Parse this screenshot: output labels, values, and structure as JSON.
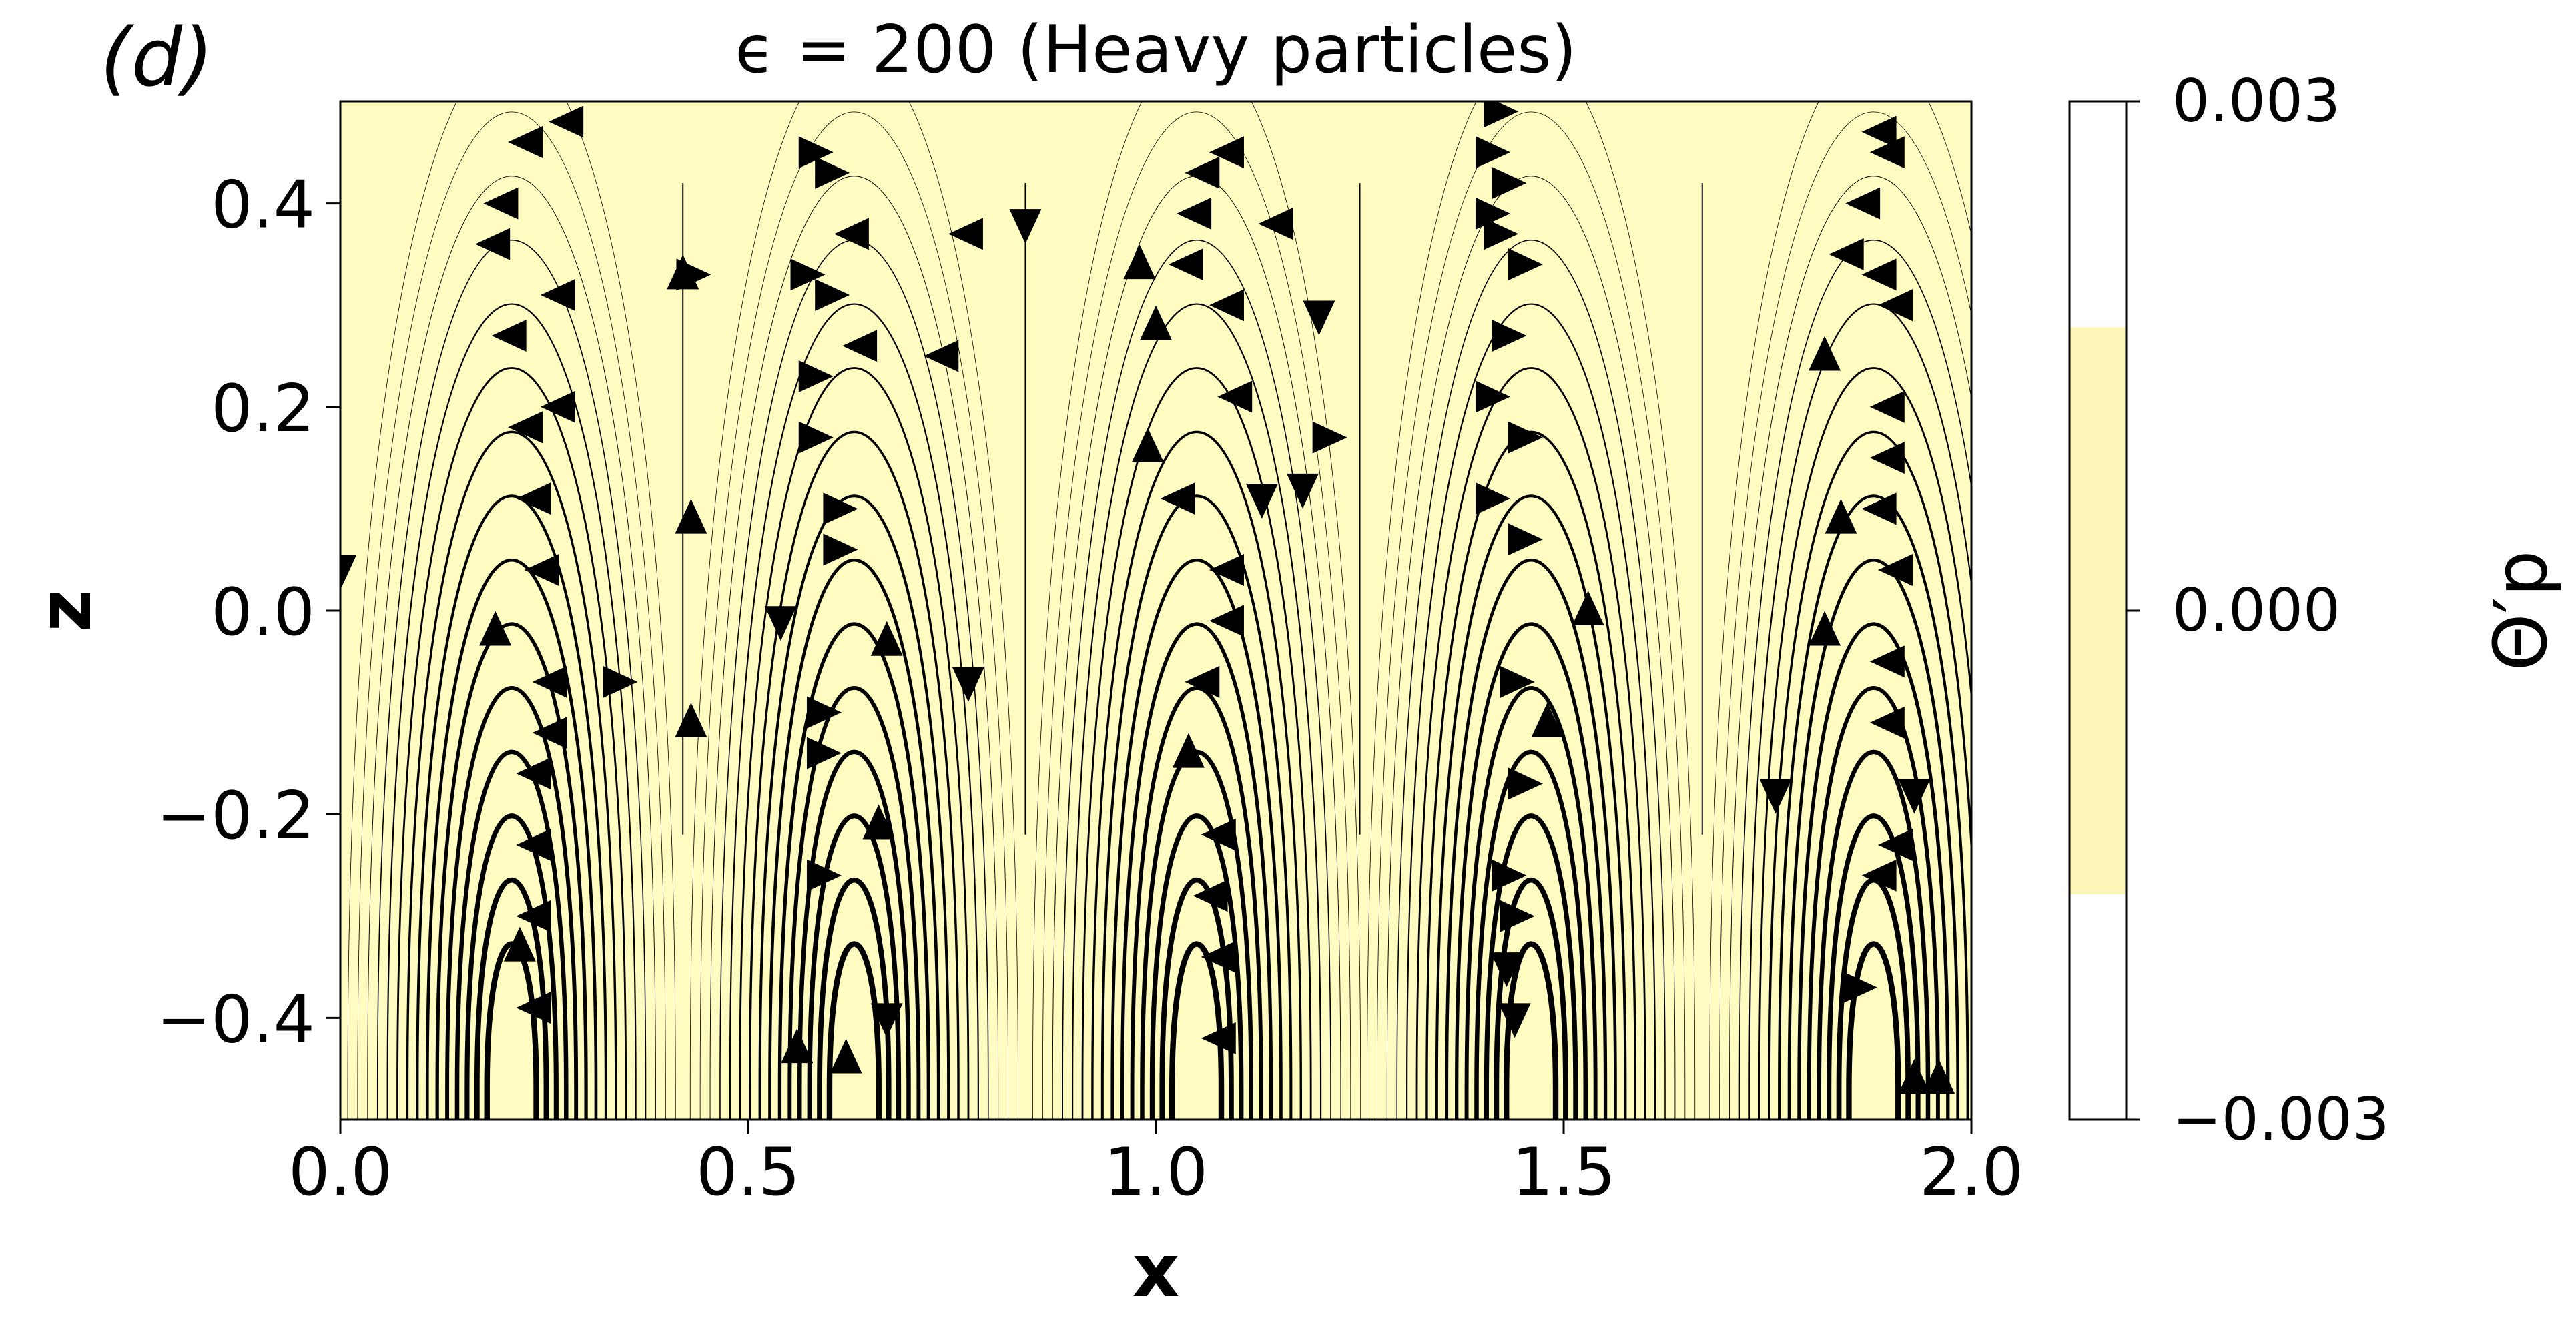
{
  "panel_label": "(d)",
  "chart_data": {
    "type": "streamplot",
    "title": "ϵ = 200 (Heavy particles)",
    "xlabel": "x",
    "ylabel": "z",
    "xlim": [
      0.0,
      2.0
    ],
    "ylim": [
      -0.5,
      0.5
    ],
    "x_ticks": [
      "0.0",
      "0.5",
      "1.0",
      "1.5",
      "2.0"
    ],
    "y_ticks": [
      "−0.4",
      "−0.2",
      "0.0",
      "0.2",
      "0.4"
    ],
    "x_tick_values": [
      0.0,
      0.5,
      1.0,
      1.5,
      2.0
    ],
    "y_tick_values": [
      -0.4,
      -0.2,
      0.0,
      0.2,
      0.4
    ],
    "field_color": "#fffcc2",
    "stream_color": "#000000",
    "colorbar": {
      "label": "Θ′p",
      "range": [
        -0.003,
        0.003
      ],
      "ticks": [
        "0.003",
        "0.000",
        "−0.003"
      ],
      "tick_values": [
        0.003,
        0.0,
        -0.003
      ],
      "band_color": "#fbf6b8",
      "band_range": [
        -0.00167,
        0.00167
      ]
    },
    "roll_centers_x": [
      0.21,
      0.63,
      1.05,
      1.46,
      1.88
    ],
    "roll_center_z": -0.47,
    "roll_boundaries_x": [
      0.42,
      0.84,
      1.25,
      1.67
    ],
    "arrows": [
      {
        "x": 0.23,
        "z": 0.46,
        "dir": "left"
      },
      {
        "x": 0.2,
        "z": 0.4,
        "dir": "left"
      },
      {
        "x": 0.19,
        "z": 0.36,
        "dir": "left"
      },
      {
        "x": 0.21,
        "z": 0.27,
        "dir": "left"
      },
      {
        "x": 0.23,
        "z": 0.18,
        "dir": "left"
      },
      {
        "x": 0.24,
        "z": 0.11,
        "dir": "left"
      },
      {
        "x": 0.25,
        "z": 0.04,
        "dir": "left"
      },
      {
        "x": 0.19,
        "z": -0.02,
        "dir": "up"
      },
      {
        "x": 0.26,
        "z": -0.07,
        "dir": "left"
      },
      {
        "x": 0.26,
        "z": -0.12,
        "dir": "left"
      },
      {
        "x": 0.24,
        "z": -0.16,
        "dir": "left"
      },
      {
        "x": 0.24,
        "z": -0.23,
        "dir": "left"
      },
      {
        "x": 0.24,
        "z": -0.3,
        "dir": "left"
      },
      {
        "x": 0.22,
        "z": -0.33,
        "dir": "up"
      },
      {
        "x": 0.24,
        "z": -0.39,
        "dir": "left"
      },
      {
        "x": 0.34,
        "z": -0.07,
        "dir": "right"
      },
      {
        "x": 0.27,
        "z": 0.31,
        "dir": "left"
      },
      {
        "x": 0.27,
        "z": 0.2,
        "dir": "left"
      },
      {
        "x": 0.28,
        "z": 0.48,
        "dir": "left"
      },
      {
        "x": 0.0,
        "z": 0.04,
        "dir": "down"
      },
      {
        "x": 0.42,
        "z": 0.33,
        "dir": "up"
      },
      {
        "x": 0.43,
        "z": 0.33,
        "dir": "right"
      },
      {
        "x": 0.43,
        "z": 0.09,
        "dir": "up"
      },
      {
        "x": 0.43,
        "z": -0.11,
        "dir": "up"
      },
      {
        "x": 0.58,
        "z": 0.45,
        "dir": "right"
      },
      {
        "x": 0.6,
        "z": 0.43,
        "dir": "right"
      },
      {
        "x": 0.57,
        "z": 0.33,
        "dir": "right"
      },
      {
        "x": 0.6,
        "z": 0.31,
        "dir": "right"
      },
      {
        "x": 0.58,
        "z": 0.23,
        "dir": "right"
      },
      {
        "x": 0.58,
        "z": 0.17,
        "dir": "right"
      },
      {
        "x": 0.61,
        "z": 0.1,
        "dir": "right"
      },
      {
        "x": 0.61,
        "z": 0.06,
        "dir": "right"
      },
      {
        "x": 0.54,
        "z": -0.01,
        "dir": "down"
      },
      {
        "x": 0.59,
        "z": -0.1,
        "dir": "right"
      },
      {
        "x": 0.59,
        "z": -0.14,
        "dir": "right"
      },
      {
        "x": 0.66,
        "z": -0.21,
        "dir": "up"
      },
      {
        "x": 0.59,
        "z": -0.26,
        "dir": "right"
      },
      {
        "x": 0.56,
        "z": -0.43,
        "dir": "up"
      },
      {
        "x": 0.62,
        "z": -0.44,
        "dir": "up"
      },
      {
        "x": 0.67,
        "z": -0.4,
        "dir": "down"
      },
      {
        "x": 0.63,
        "z": 0.37,
        "dir": "left"
      },
      {
        "x": 0.64,
        "z": 0.26,
        "dir": "left"
      },
      {
        "x": 0.67,
        "z": -0.03,
        "dir": "up"
      },
      {
        "x": 0.74,
        "z": 0.25,
        "dir": "left"
      },
      {
        "x": 0.77,
        "z": -0.07,
        "dir": "down"
      },
      {
        "x": 0.77,
        "z": 0.37,
        "dir": "left"
      },
      {
        "x": 0.84,
        "z": 0.38,
        "dir": "down"
      },
      {
        "x": 0.98,
        "z": 0.34,
        "dir": "up"
      },
      {
        "x": 1.0,
        "z": 0.28,
        "dir": "up"
      },
      {
        "x": 0.99,
        "z": 0.16,
        "dir": "up"
      },
      {
        "x": 1.04,
        "z": 0.34,
        "dir": "left"
      },
      {
        "x": 1.05,
        "z": 0.39,
        "dir": "left"
      },
      {
        "x": 1.06,
        "z": 0.43,
        "dir": "left"
      },
      {
        "x": 1.09,
        "z": 0.45,
        "dir": "left"
      },
      {
        "x": 1.03,
        "z": 0.11,
        "dir": "left"
      },
      {
        "x": 1.09,
        "z": 0.04,
        "dir": "left"
      },
      {
        "x": 1.09,
        "z": -0.01,
        "dir": "left"
      },
      {
        "x": 1.06,
        "z": -0.07,
        "dir": "left"
      },
      {
        "x": 1.04,
        "z": -0.14,
        "dir": "up"
      },
      {
        "x": 1.08,
        "z": -0.22,
        "dir": "left"
      },
      {
        "x": 1.07,
        "z": -0.28,
        "dir": "left"
      },
      {
        "x": 1.08,
        "z": -0.34,
        "dir": "left"
      },
      {
        "x": 1.08,
        "z": -0.42,
        "dir": "left"
      },
      {
        "x": 1.09,
        "z": 0.3,
        "dir": "left"
      },
      {
        "x": 1.1,
        "z": 0.21,
        "dir": "left"
      },
      {
        "x": 1.15,
        "z": 0.38,
        "dir": "left"
      },
      {
        "x": 1.2,
        "z": 0.29,
        "dir": "down"
      },
      {
        "x": 1.21,
        "z": 0.17,
        "dir": "right"
      },
      {
        "x": 1.13,
        "z": 0.11,
        "dir": "down"
      },
      {
        "x": 1.18,
        "z": 0.12,
        "dir": "down"
      },
      {
        "x": 1.42,
        "z": 0.49,
        "dir": "right"
      },
      {
        "x": 1.41,
        "z": 0.45,
        "dir": "right"
      },
      {
        "x": 1.43,
        "z": 0.42,
        "dir": "right"
      },
      {
        "x": 1.41,
        "z": 0.39,
        "dir": "right"
      },
      {
        "x": 1.42,
        "z": 0.37,
        "dir": "right"
      },
      {
        "x": 1.45,
        "z": 0.34,
        "dir": "right"
      },
      {
        "x": 1.43,
        "z": 0.27,
        "dir": "right"
      },
      {
        "x": 1.41,
        "z": 0.21,
        "dir": "right"
      },
      {
        "x": 1.45,
        "z": 0.17,
        "dir": "right"
      },
      {
        "x": 1.41,
        "z": 0.11,
        "dir": "right"
      },
      {
        "x": 1.45,
        "z": 0.07,
        "dir": "right"
      },
      {
        "x": 1.53,
        "z": 0.0,
        "dir": "up"
      },
      {
        "x": 1.44,
        "z": -0.07,
        "dir": "right"
      },
      {
        "x": 1.48,
        "z": -0.11,
        "dir": "up"
      },
      {
        "x": 1.45,
        "z": -0.17,
        "dir": "right"
      },
      {
        "x": 1.43,
        "z": -0.26,
        "dir": "right"
      },
      {
        "x": 1.44,
        "z": -0.3,
        "dir": "right"
      },
      {
        "x": 1.43,
        "z": -0.35,
        "dir": "down"
      },
      {
        "x": 1.44,
        "z": -0.4,
        "dir": "down"
      },
      {
        "x": 1.82,
        "z": 0.25,
        "dir": "up"
      },
      {
        "x": 1.84,
        "z": 0.09,
        "dir": "up"
      },
      {
        "x": 1.82,
        "z": -0.02,
        "dir": "up"
      },
      {
        "x": 1.76,
        "z": -0.18,
        "dir": "down"
      },
      {
        "x": 1.87,
        "z": 0.4,
        "dir": "left"
      },
      {
        "x": 1.85,
        "z": 0.35,
        "dir": "left"
      },
      {
        "x": 1.89,
        "z": 0.33,
        "dir": "left"
      },
      {
        "x": 1.91,
        "z": 0.3,
        "dir": "left"
      },
      {
        "x": 1.9,
        "z": 0.2,
        "dir": "left"
      },
      {
        "x": 1.9,
        "z": 0.15,
        "dir": "left"
      },
      {
        "x": 1.89,
        "z": 0.1,
        "dir": "left"
      },
      {
        "x": 1.91,
        "z": 0.04,
        "dir": "left"
      },
      {
        "x": 1.9,
        "z": -0.05,
        "dir": "left"
      },
      {
        "x": 1.9,
        "z": -0.11,
        "dir": "left"
      },
      {
        "x": 1.93,
        "z": -0.18,
        "dir": "down"
      },
      {
        "x": 1.91,
        "z": -0.23,
        "dir": "left"
      },
      {
        "x": 1.89,
        "z": -0.26,
        "dir": "left"
      },
      {
        "x": 1.86,
        "z": -0.37,
        "dir": "right"
      },
      {
        "x": 1.93,
        "z": -0.46,
        "dir": "up"
      },
      {
        "x": 1.9,
        "z": 0.45,
        "dir": "left"
      },
      {
        "x": 1.89,
        "z": 0.47,
        "dir": "left"
      },
      {
        "x": 1.96,
        "z": -0.46,
        "dir": "up"
      }
    ]
  }
}
